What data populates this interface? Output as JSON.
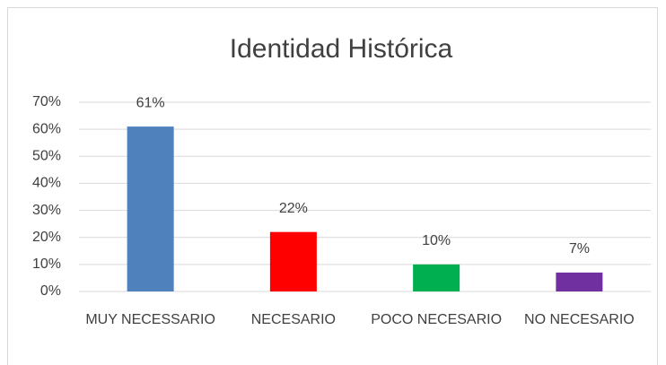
{
  "chart_data": {
    "type": "bar",
    "title": "Identidad Histórica",
    "categories": [
      "MUY NECESSARIO",
      "NECESARIO",
      "POCO NECESARIO",
      "NO NECESARIO"
    ],
    "values": [
      61,
      22,
      10,
      7
    ],
    "value_labels": [
      "61%",
      "22%",
      "10%",
      "7%"
    ],
    "colors": [
      "#4f81bd",
      "#ff0000",
      "#00b050",
      "#7030a0"
    ],
    "ylim": [
      0,
      70
    ],
    "yticks": [
      {
        "value": 0,
        "label": "0%"
      },
      {
        "value": 10,
        "label": "10%"
      },
      {
        "value": 20,
        "label": "20%"
      },
      {
        "value": 30,
        "label": "30%"
      },
      {
        "value": 40,
        "label": "40%"
      },
      {
        "value": 50,
        "label": "50%"
      },
      {
        "value": 60,
        "label": "60%"
      },
      {
        "value": 70,
        "label": "70%"
      }
    ],
    "grid": true
  }
}
